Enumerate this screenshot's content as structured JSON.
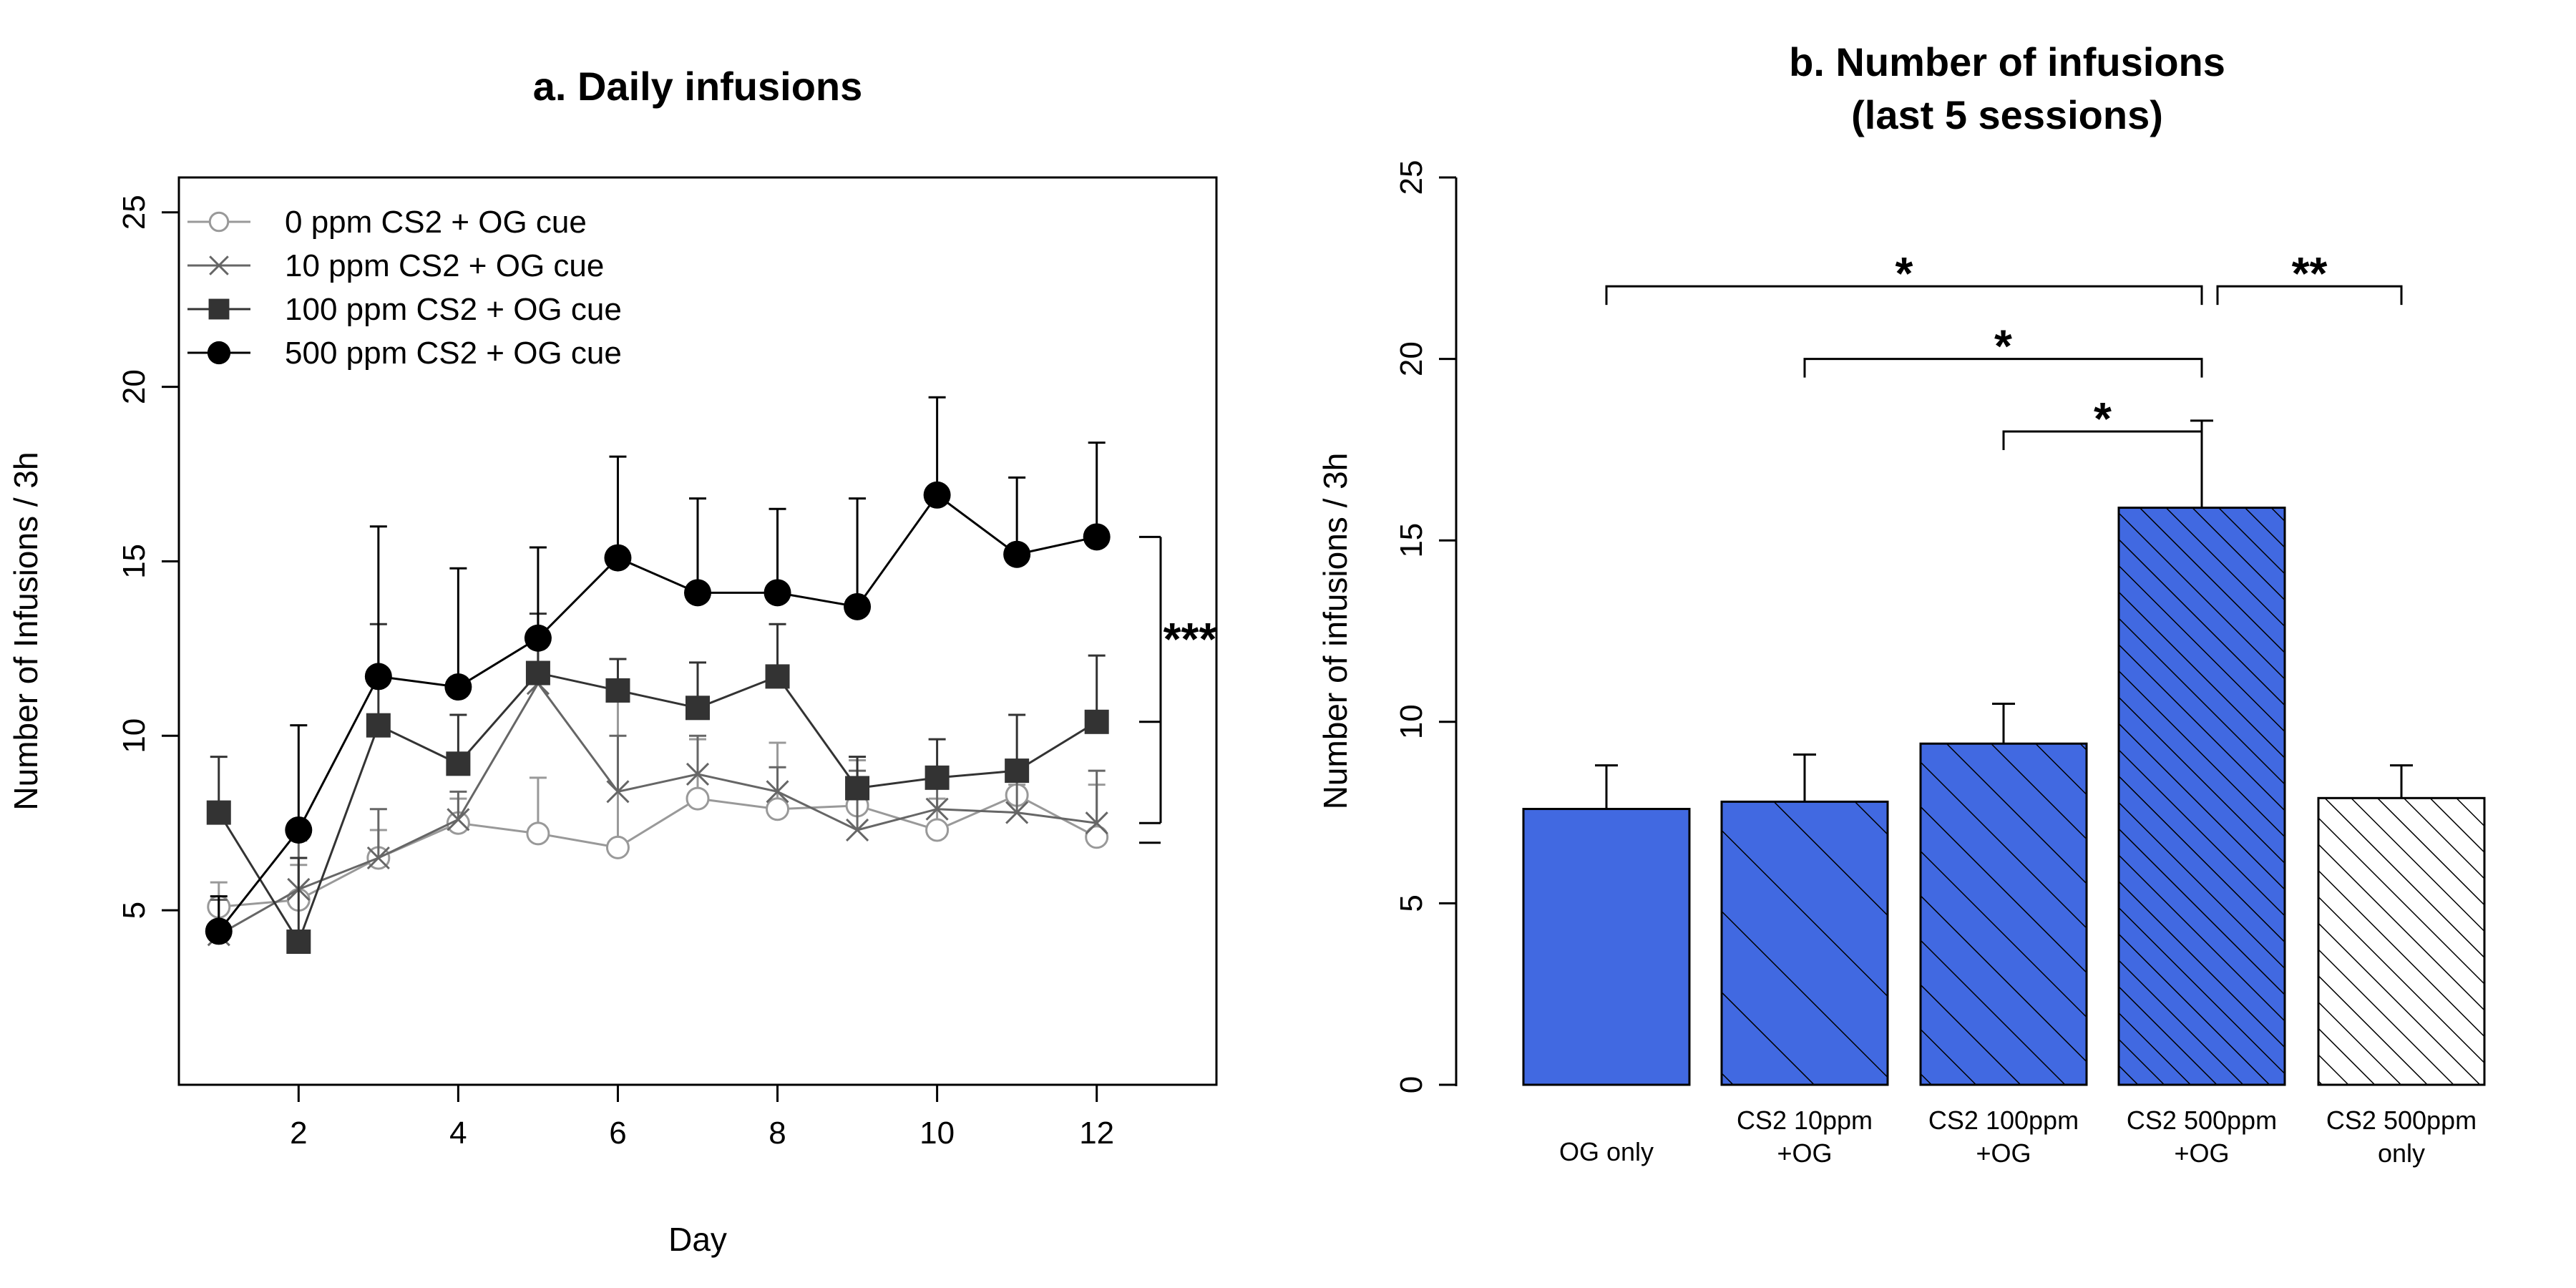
{
  "chart_data": [
    {
      "type": "line",
      "title": "a. Daily infusions",
      "xlabel": "Day",
      "ylabel": "Number of Infusions / 3h",
      "xlim": [
        0.5,
        13.5
      ],
      "ylim": [
        0,
        26
      ],
      "xticks": [
        "2",
        "4",
        "6",
        "8",
        "10",
        "12"
      ],
      "yticks": [
        "5",
        "10",
        "15",
        "20",
        "25"
      ],
      "grid": false,
      "legend_position": "top-left",
      "x": [
        1,
        2,
        3,
        4,
        5,
        6,
        7,
        8,
        9,
        10,
        11,
        12
      ],
      "series": [
        {
          "name": "0 ppm CS2 + OG cue",
          "color": "#999999",
          "marker": "open-circle",
          "values": [
            5.1,
            5.3,
            6.5,
            7.5,
            7.2,
            6.8,
            8.2,
            7.9,
            8.0,
            7.3,
            8.3,
            7.1
          ],
          "error_upper": [
            5.8,
            6.3,
            7.3,
            8.2,
            8.8,
            11.0,
            9.9,
            9.8,
            9.3,
            8.2,
            8.6,
            8.6
          ]
        },
        {
          "name": "10 ppm CS2 + OG cue",
          "color": "#666666",
          "marker": "cross",
          "values": [
            4.3,
            5.6,
            6.5,
            7.6,
            11.5,
            8.4,
            8.9,
            8.4,
            7.3,
            7.9,
            7.8,
            7.5
          ],
          "error_upper": [
            5.3,
            7.0,
            7.9,
            8.4,
            13.0,
            10.0,
            10.0,
            9.1,
            9.0,
            8.9,
            8.7,
            9.0
          ]
        },
        {
          "name": "100 ppm CS2 + OG cue",
          "color": "#333333",
          "marker": "filled-square",
          "values": [
            7.8,
            4.1,
            10.3,
            9.2,
            11.8,
            11.3,
            10.8,
            11.7,
            8.5,
            8.8,
            9.0,
            10.4
          ],
          "error_upper": [
            9.4,
            6.5,
            13.2,
            10.6,
            13.5,
            12.2,
            12.1,
            13.2,
            9.4,
            9.9,
            10.6,
            12.3
          ]
        },
        {
          "name": "500 ppm CS2 + OG cue",
          "color": "#000000",
          "marker": "filled-circle",
          "values": [
            4.4,
            7.3,
            11.7,
            11.4,
            12.8,
            15.1,
            14.1,
            14.1,
            13.7,
            16.9,
            15.2,
            15.7
          ],
          "error_upper": [
            5.4,
            10.3,
            16.0,
            14.8,
            15.4,
            18.0,
            16.8,
            16.5,
            16.8,
            19.7,
            17.4,
            18.4
          ]
        }
      ],
      "annotations": [
        {
          "text": "***",
          "ticks_at": [
            15.7,
            10.4,
            7.5,
            7.1
          ],
          "placement": "right-of-day-12"
        }
      ]
    },
    {
      "type": "bar",
      "title": [
        "b. Number of infusions",
        "(last 5 sessions)"
      ],
      "xlabel": "",
      "ylabel": "Number of infusions / 3h",
      "ylim": [
        0,
        25
      ],
      "yticks": [
        "0",
        "5",
        "10",
        "15",
        "20",
        "25"
      ],
      "grid": false,
      "categories": [
        [
          "OG only"
        ],
        [
          "CS2 10ppm",
          "+OG"
        ],
        [
          "CS2 100ppm",
          "+OG"
        ],
        [
          "CS2 500ppm",
          "+OG"
        ],
        [
          "CS2 500ppm",
          "only"
        ]
      ],
      "values": [
        7.6,
        7.8,
        9.4,
        15.9,
        7.9
      ],
      "error_upper": [
        8.8,
        9.1,
        10.5,
        18.3,
        8.8
      ],
      "fills": [
        "#4169E1",
        "#4169E1",
        "#4169E1",
        "#4169E1",
        "#ffffff"
      ],
      "hatch": [
        "none",
        "sparse",
        "medium",
        "dense",
        "dense"
      ],
      "significance": [
        {
          "from": 0,
          "to": 3,
          "y": 22,
          "label": "*"
        },
        {
          "from": 1,
          "to": 3,
          "y": 20,
          "label": "*"
        },
        {
          "from": 2,
          "to": 3,
          "y": 18,
          "label": "*"
        },
        {
          "from": 3,
          "to": 4,
          "y": 22,
          "label": "**"
        }
      ]
    }
  ]
}
